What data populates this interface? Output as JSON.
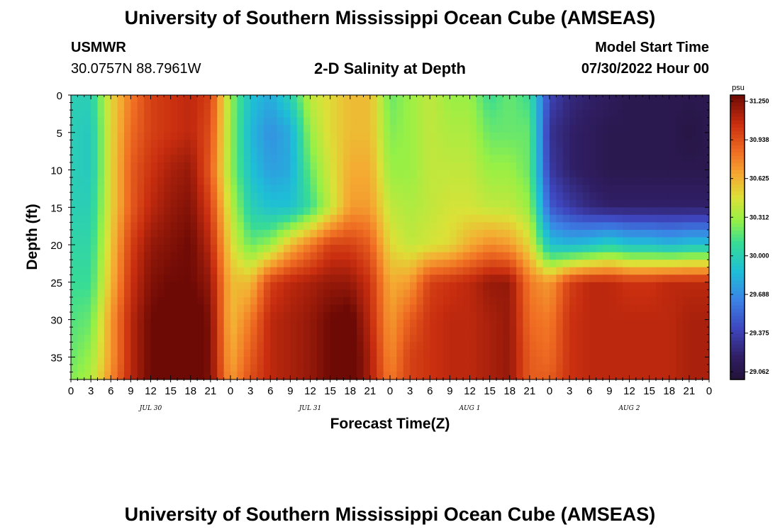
{
  "header": {
    "title": "University of Southern Mississippi Ocean Cube (AMSEAS)",
    "station_name": "USMWR",
    "station_coords": "30.0757N  88.7961W",
    "plot_title": "2-D Salinity at Depth",
    "model_start_label": "Model Start Time",
    "model_start_value": "07/30/2022 Hour 00"
  },
  "footer": {
    "title": "University of Southern Mississippi Ocean Cube (AMSEAS)"
  },
  "chart_data": {
    "type": "heatmap",
    "title": "2-D Salinity at Depth",
    "xlabel": "Forecast Time(Z)",
    "ylabel": "Depth (ft)",
    "units": "psu",
    "x_hours_range": [
      0,
      96
    ],
    "y_depth_range": [
      0,
      38
    ],
    "x_tick_labels": [
      "0",
      "3",
      "6",
      "9",
      "12",
      "15",
      "18",
      "21",
      "0",
      "3",
      "6",
      "9",
      "12",
      "15",
      "18",
      "21",
      "0",
      "3",
      "6",
      "9",
      "12",
      "15",
      "18",
      "21",
      "0",
      "3",
      "6",
      "9",
      "12",
      "15",
      "18",
      "21",
      "0"
    ],
    "y_tick_labels": [
      "0",
      "5",
      "10",
      "15",
      "20",
      "25",
      "30",
      "35"
    ],
    "y_tick_values": [
      0,
      5,
      10,
      15,
      20,
      25,
      30,
      35
    ],
    "day_labels": [
      "JUL 30",
      "JUL 31",
      "AUG 1",
      "AUG 2"
    ],
    "colorbar": {
      "min": 29.0,
      "max": 31.3,
      "tick_labels": [
        "31.250",
        "30.938",
        "30.625",
        "30.312",
        "30.000",
        "29.688",
        "29.375",
        "29.062"
      ],
      "tick_values": [
        31.25,
        30.938,
        30.625,
        30.312,
        30.0,
        29.688,
        29.375,
        29.062
      ]
    },
    "grid_hours": [
      0,
      3,
      6,
      9,
      12,
      15,
      18,
      21,
      24,
      27,
      30,
      33,
      36,
      39,
      42,
      45,
      48,
      51,
      54,
      57,
      60,
      63,
      66,
      69,
      72,
      75,
      78,
      81,
      84,
      87,
      90,
      93,
      96
    ],
    "grid_depths": [
      0,
      5,
      10,
      15,
      20,
      25,
      30,
      35,
      38
    ],
    "values": [
      [
        30.0,
        30.0,
        30.5,
        30.8,
        31.0,
        31.05,
        31.1,
        31.0,
        30.3,
        29.9,
        29.8,
        30.0,
        30.4,
        30.5,
        30.6,
        30.6,
        30.2,
        30.3,
        30.4,
        30.3,
        30.3,
        30.1,
        30.2,
        30.1,
        29.4,
        29.25,
        29.2,
        29.15,
        29.1,
        29.1,
        29.1,
        29.1,
        29.1
      ],
      [
        30.0,
        29.95,
        30.5,
        30.85,
        31.0,
        31.05,
        31.1,
        30.95,
        30.3,
        29.85,
        29.7,
        29.8,
        30.3,
        30.5,
        30.6,
        30.6,
        30.25,
        30.3,
        30.4,
        30.35,
        30.35,
        30.2,
        30.2,
        30.2,
        29.3,
        29.2,
        29.15,
        29.1,
        29.1,
        29.1,
        29.1,
        29.05,
        29.1
      ],
      [
        30.0,
        29.95,
        30.5,
        30.9,
        31.05,
        31.15,
        31.2,
        30.9,
        30.3,
        29.9,
        29.75,
        29.8,
        30.2,
        30.45,
        30.65,
        30.65,
        30.3,
        30.3,
        30.4,
        30.4,
        30.4,
        30.3,
        30.3,
        30.2,
        29.35,
        29.2,
        29.15,
        29.1,
        29.1,
        29.1,
        29.1,
        29.1,
        29.1
      ],
      [
        30.0,
        30.0,
        30.5,
        30.9,
        31.1,
        31.2,
        31.25,
        31.0,
        30.4,
        30.0,
        29.9,
        29.9,
        30.1,
        30.4,
        30.7,
        30.7,
        30.4,
        30.35,
        30.4,
        30.45,
        30.45,
        30.4,
        30.4,
        30.3,
        29.5,
        29.35,
        29.25,
        29.2,
        29.2,
        29.2,
        29.2,
        29.2,
        29.2
      ],
      [
        30.05,
        30.05,
        30.55,
        31.0,
        31.2,
        31.25,
        31.3,
        31.1,
        30.5,
        30.2,
        30.3,
        30.6,
        30.8,
        31.0,
        31.0,
        30.9,
        30.5,
        30.4,
        30.45,
        30.5,
        30.65,
        30.75,
        30.7,
        30.5,
        29.9,
        29.85,
        29.9,
        30.0,
        29.9,
        29.9,
        29.85,
        29.9,
        29.9
      ],
      [
        30.1,
        30.1,
        30.6,
        31.05,
        31.25,
        31.3,
        31.3,
        31.2,
        30.6,
        30.6,
        31.0,
        31.1,
        31.15,
        31.2,
        31.2,
        31.05,
        30.65,
        30.7,
        31.0,
        31.05,
        31.1,
        31.2,
        31.2,
        30.8,
        30.7,
        31.0,
        31.1,
        31.1,
        31.05,
        31.05,
        31.1,
        31.1,
        31.1
      ],
      [
        30.15,
        30.2,
        30.7,
        31.1,
        31.3,
        31.35,
        31.4,
        31.25,
        30.6,
        30.8,
        31.1,
        31.15,
        31.2,
        31.3,
        31.35,
        31.1,
        30.7,
        30.9,
        31.05,
        31.1,
        31.1,
        31.15,
        31.2,
        30.85,
        30.8,
        31.05,
        31.1,
        31.1,
        31.1,
        31.1,
        31.1,
        31.15,
        31.15
      ],
      [
        30.2,
        30.3,
        30.7,
        31.1,
        31.3,
        31.35,
        31.42,
        31.25,
        30.65,
        30.9,
        31.1,
        31.15,
        31.2,
        31.3,
        31.38,
        31.15,
        30.75,
        31.0,
        31.05,
        31.1,
        31.1,
        31.15,
        31.2,
        30.9,
        30.85,
        31.05,
        31.1,
        31.1,
        31.1,
        31.1,
        31.1,
        31.15,
        31.15
      ],
      [
        30.25,
        30.35,
        30.75,
        31.1,
        31.3,
        31.35,
        31.4,
        31.25,
        30.7,
        30.95,
        31.1,
        31.15,
        31.2,
        31.3,
        31.38,
        31.15,
        30.8,
        31.0,
        31.05,
        31.1,
        31.1,
        31.15,
        31.2,
        30.9,
        30.9,
        31.05,
        31.1,
        31.1,
        31.1,
        31.1,
        31.1,
        31.15,
        31.15
      ]
    ]
  }
}
